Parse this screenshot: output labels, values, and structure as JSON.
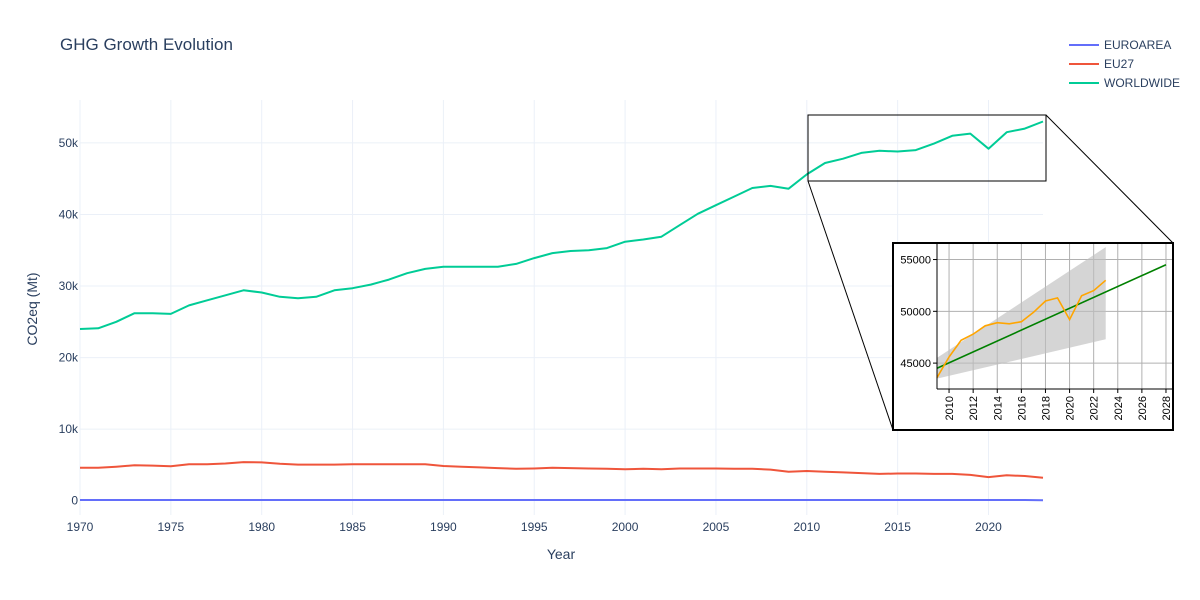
{
  "colors": {
    "EUROAREA": "#636efa",
    "EU27": "#ef553b",
    "WORLDWIDE": "#00cc96",
    "inset_actual": "#ffa500",
    "inset_trend": "#008000",
    "inset_band": "#bfbfbf"
  },
  "chart_data": {
    "type": "line",
    "title": "GHG Growth Evolution",
    "xlabel": "Year",
    "ylabel": "CO2eq (Mt)",
    "xlim": [
      1970,
      2023
    ],
    "ylim": [
      -2000,
      56000
    ],
    "x_ticks": [
      1970,
      1975,
      1980,
      1985,
      1990,
      1995,
      2000,
      2005,
      2010,
      2015,
      2020
    ],
    "y_ticks": [
      0,
      10000,
      20000,
      30000,
      40000,
      50000
    ],
    "y_tick_labels": [
      "0",
      "10k",
      "20k",
      "30k",
      "40k",
      "50k"
    ],
    "grid": true,
    "legend_position": "top-right",
    "x": [
      1970,
      1971,
      1972,
      1973,
      1974,
      1975,
      1976,
      1977,
      1978,
      1979,
      1980,
      1981,
      1982,
      1983,
      1984,
      1985,
      1986,
      1987,
      1988,
      1989,
      1990,
      1991,
      1992,
      1993,
      1994,
      1995,
      1996,
      1997,
      1998,
      1999,
      2000,
      2001,
      2002,
      2003,
      2004,
      2005,
      2006,
      2007,
      2008,
      2009,
      2010,
      2011,
      2012,
      2013,
      2014,
      2015,
      2016,
      2017,
      2018,
      2019,
      2020,
      2021,
      2022,
      2023
    ],
    "series": [
      {
        "name": "EUROAREA",
        "values": [
          100,
          100,
          100,
          100,
          100,
          100,
          100,
          100,
          100,
          100,
          100,
          100,
          100,
          100,
          100,
          100,
          100,
          100,
          100,
          100,
          100,
          100,
          100,
          100,
          100,
          100,
          100,
          100,
          100,
          100,
          100,
          100,
          100,
          100,
          100,
          100,
          100,
          100,
          100,
          100,
          100,
          100,
          100,
          100,
          100,
          100,
          100,
          100,
          100,
          100,
          100,
          100,
          100,
          50
        ]
      },
      {
        "name": "EU27",
        "values": [
          4600,
          4600,
          4750,
          4950,
          4900,
          4800,
          5100,
          5100,
          5200,
          5400,
          5350,
          5150,
          5050,
          5050,
          5050,
          5100,
          5100,
          5100,
          5100,
          5100,
          4850,
          4750,
          4650,
          4550,
          4450,
          4500,
          4600,
          4550,
          4500,
          4450,
          4400,
          4450,
          4400,
          4500,
          4500,
          4500,
          4450,
          4450,
          4350,
          4050,
          4150,
          4050,
          3950,
          3850,
          3750,
          3800,
          3800,
          3750,
          3750,
          3600,
          3300,
          3550,
          3450,
          3200
        ]
      },
      {
        "name": "WORLDWIDE",
        "values": [
          24000,
          24100,
          25000,
          26200,
          26200,
          26100,
          27300,
          28000,
          28700,
          29400,
          29100,
          28500,
          28300,
          28500,
          29400,
          29700,
          30200,
          30900,
          31800,
          32400,
          32700,
          32700,
          32700,
          32700,
          33100,
          33900,
          34600,
          34900,
          35000,
          35300,
          36200,
          36500,
          36900,
          38500,
          40100,
          41300,
          42500,
          43700,
          44000,
          43600,
          45600,
          47200,
          47800,
          48600,
          48900,
          48800,
          49000,
          49900,
          51000,
          51300,
          49200,
          51500,
          52000,
          53000
        ]
      }
    ],
    "inset": {
      "type": "line",
      "xlim": [
        2009,
        2028.5
      ],
      "ylim": [
        42500,
        56500
      ],
      "x_ticks": [
        2010,
        2012,
        2014,
        2016,
        2018,
        2020,
        2022,
        2024,
        2026,
        2028
      ],
      "y_ticks": [
        45000,
        50000,
        55000
      ],
      "actual": {
        "x": [
          2009,
          2010,
          2011,
          2012,
          2013,
          2014,
          2015,
          2016,
          2017,
          2018,
          2019,
          2020,
          2021,
          2022,
          2023
        ],
        "values": [
          43600,
          45600,
          47200,
          47800,
          48600,
          48900,
          48800,
          49000,
          49900,
          51000,
          51300,
          49200,
          51500,
          52000,
          53000
        ]
      },
      "trend": {
        "x": [
          2009,
          2028
        ],
        "values": [
          44500,
          54500
        ]
      },
      "band": {
        "x": [
          2009,
          2023
        ],
        "upper": [
          45500,
          56200
        ],
        "lower": [
          43500,
          47300
        ]
      }
    }
  }
}
